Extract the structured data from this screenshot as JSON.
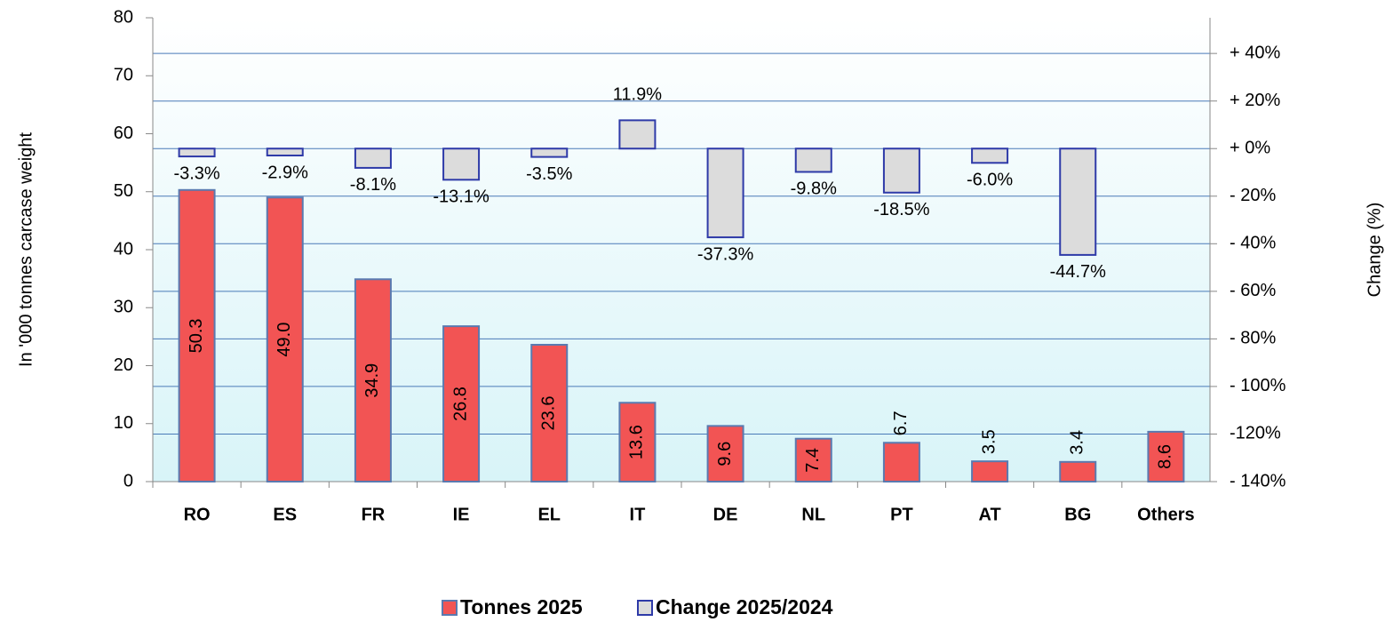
{
  "chart_data": {
    "type": "bar",
    "y_label": "In '000 tonnes  carcase  weight",
    "y2_label": "Change  (%)",
    "categories": [
      "RO",
      "ES",
      "FR",
      "IE",
      "EL",
      "IT",
      "DE",
      "NL",
      "PT",
      "AT",
      "BG",
      "Others"
    ],
    "series": [
      {
        "name": "Tonnes 2025",
        "color": "#f25454",
        "values": [
          50.3,
          49.0,
          34.9,
          26.8,
          23.6,
          13.6,
          9.6,
          7.4,
          6.7,
          3.5,
          3.4,
          8.6
        ],
        "value_labels": [
          "50.3",
          "49.0",
          "34.9",
          "26.8",
          "23.6",
          "13.6",
          "9.6",
          "7.4",
          "6.7",
          "3.5",
          "3.4",
          "8.6"
        ]
      },
      {
        "name": "Change 2025/2024",
        "color": "#dcdcdc",
        "axis": "y2",
        "values": [
          -3.3,
          -2.9,
          -8.1,
          -13.1,
          -3.5,
          11.9,
          -37.3,
          -9.8,
          -18.5,
          -6.0,
          -44.7,
          null
        ],
        "value_labels": [
          "-3.3%",
          "-2.9%",
          "-8.1%",
          "-13.1%",
          "-3.5%",
          "11.9%",
          "-37.3%",
          "-9.8%",
          "-18.5%",
          "-6.0%",
          "-44.7%",
          null
        ]
      }
    ],
    "ylim": [
      0,
      80
    ],
    "yticks": [
      0,
      10,
      20,
      30,
      40,
      50,
      60,
      70,
      80
    ],
    "y2lim": [
      -140,
      55
    ],
    "y2ticks": [
      {
        "value": -140,
        "label": "- 140%"
      },
      {
        "value": -120,
        "label": "-120%"
      },
      {
        "value": -100,
        "label": "- 100%"
      },
      {
        "value": -80,
        "label": "- 80%"
      },
      {
        "value": -60,
        "label": "- 60%"
      },
      {
        "value": -40,
        "label": "- 40%"
      },
      {
        "value": -20,
        "label": "- 20%"
      },
      {
        "value": 0,
        "label": "+ 0%"
      },
      {
        "value": 20,
        "label": "+ 20%"
      },
      {
        "value": 40,
        "label": "+ 40%"
      }
    ],
    "grid": true
  }
}
